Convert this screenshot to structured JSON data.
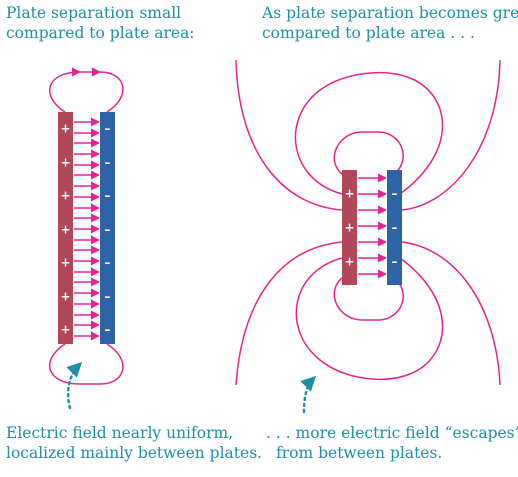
{
  "colors": {
    "caption": "#1d8fa6",
    "field_line": "#e8238f",
    "positive_plate": "#b0475a",
    "negative_plate": "#2e63a8",
    "pointer": "#1d8fa6"
  },
  "left": {
    "title_line1": "Plate separation small",
    "title_line2": "compared to plate area:",
    "caption_line1": "Electric field nearly uniform,",
    "caption_line2": "localized mainly between plates.",
    "positive_sign": "+",
    "negative_sign": "–"
  },
  "right": {
    "title_line1": "As plate separation becomes greater",
    "title_line2": "compared to plate area . . .",
    "caption_line1": ". . . more electric field “escapes”",
    "caption_line2": "from between plates.",
    "positive_sign": "+",
    "negative_sign": "–"
  }
}
